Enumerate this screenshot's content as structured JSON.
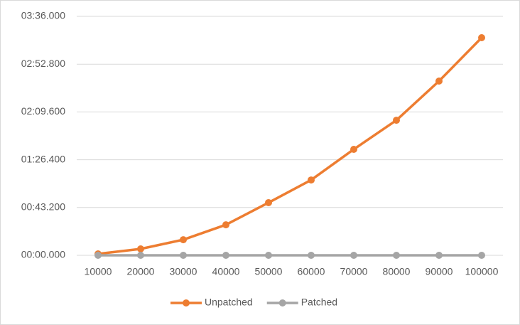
{
  "chart_data": {
    "type": "line",
    "categories": [
      "10000",
      "20000",
      "30000",
      "40000",
      "50000",
      "60000",
      "70000",
      "80000",
      "90000",
      "100000"
    ],
    "series": [
      {
        "name": "Unpatched",
        "color": "#ed7d31",
        "values": [
          1.3,
          5.8,
          14.1,
          27.6,
          47.6,
          68.1,
          95.8,
          122.1,
          157.5,
          196.7
        ]
      },
      {
        "name": "Patched",
        "color": "#a5a5a5",
        "values": [
          0,
          0,
          0,
          0,
          0,
          0,
          0,
          0,
          0,
          0
        ]
      }
    ],
    "ylim": [
      0,
      216
    ],
    "yticks": [
      {
        "value": 0,
        "label": "00:00.000"
      },
      {
        "value": 43.2,
        "label": "00:43.200"
      },
      {
        "value": 86.4,
        "label": "01:26.400"
      },
      {
        "value": 129.6,
        "label": "02:09.600"
      },
      {
        "value": 172.8,
        "label": "02:52.800"
      },
      {
        "value": 216,
        "label": "03:36.000"
      }
    ],
    "grid": true,
    "legend": "bottom"
  }
}
